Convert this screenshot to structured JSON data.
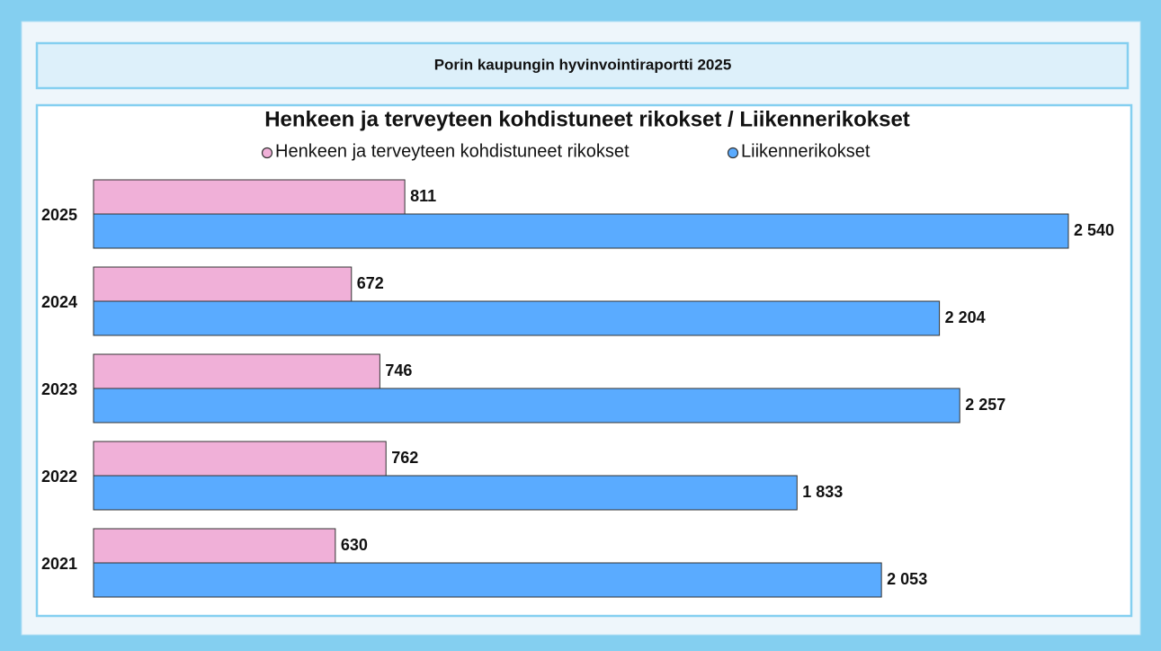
{
  "header": {
    "title": "Porin kaupungin hyvinvointiraportti 2025"
  },
  "chart_data": {
    "type": "bar",
    "orientation": "horizontal",
    "title": "Henkeen ja terveyteen kohdistuneet rikokset / Liikennerikokset",
    "categories": [
      "2025",
      "2024",
      "2023",
      "2022",
      "2021"
    ],
    "series": [
      {
        "name": "Henkeen ja terveyteen kohdistuneet rikokset",
        "color": "#f0b0d8",
        "values": [
          811,
          672,
          746,
          762,
          630
        ]
      },
      {
        "name": "Liikennerikokset",
        "color": "#5aabff",
        "values": [
          2540,
          2204,
          2257,
          1833,
          2053
        ],
        "value_labels": [
          "2 540",
          "2 204",
          "2 257",
          "1 833",
          "2 053"
        ]
      }
    ],
    "xlim": [
      0,
      2540
    ],
    "legend": "top"
  }
}
